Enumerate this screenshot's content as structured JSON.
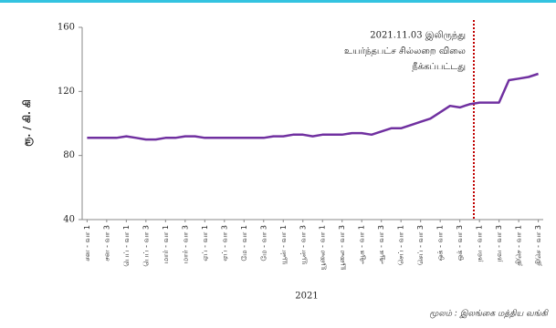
{
  "chart_data": {
    "type": "line",
    "y_label": "ரூ. / கி. கி",
    "x_label": "2021",
    "source": "மூலம் :  இலங்கை மத்திய வங்கி",
    "annotation": [
      "2021.11.03 இலிருந்து",
      "உயர்ந்தபட்ச சில்லறை விலை",
      "நீக்கப்பட்டது"
    ],
    "categories": [
      "சன - வா 1",
      null,
      "சன - வா 3",
      null,
      "பெப் - வா 1",
      null,
      "பெப் - வா 3",
      null,
      "மார் - வா 1",
      null,
      "மார் - வா 3",
      null,
      "ஏப் - வா 1",
      null,
      "ஏப் - வா 3",
      null,
      "மே - வா 1",
      null,
      "மே - வா 3",
      null,
      "யூன் - வா 1",
      null,
      "யூன் - வா 3",
      null,
      "யூலை - வா 1",
      null,
      "யூலை - வா 3",
      null,
      "ஆக - வா 1",
      null,
      "ஆக - வா 3",
      null,
      "செப் - வா 1",
      null,
      "செப் - வா 3",
      null,
      "ஒக் - வா 1",
      null,
      "ஒக் - வா 3",
      null,
      "நவ - வா 1",
      null,
      "நவ - வா 3",
      null,
      "திசெ - வா 1",
      null,
      "திசெ - வா 3"
    ],
    "series": [
      {
        "color": "#7030a0",
        "values": [
          91,
          91,
          91,
          91,
          92,
          91,
          90,
          90,
          91,
          91,
          92,
          92,
          91,
          91,
          91,
          91,
          91,
          91,
          91,
          92,
          92,
          93,
          93,
          92,
          93,
          93,
          93,
          94,
          94,
          93,
          95,
          97,
          97,
          99,
          101,
          103,
          107,
          111,
          110,
          112,
          113,
          113,
          113,
          127,
          128,
          129,
          131
        ]
      }
    ],
    "annotation_color": "#c00000",
    "ylim": [
      40,
      160
    ],
    "yticks": [
      40,
      80,
      120,
      160
    ]
  }
}
